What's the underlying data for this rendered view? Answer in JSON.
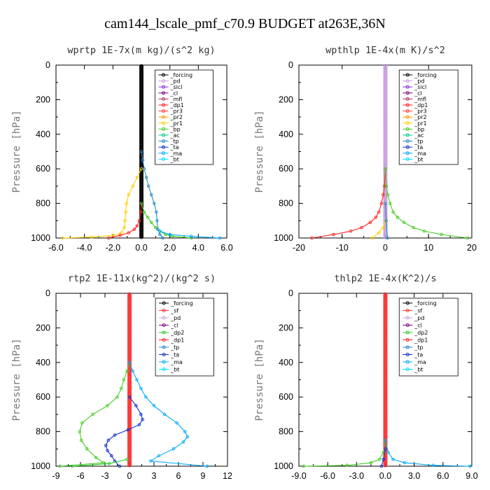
{
  "title": "cam144_lscale_pmf_c70.9  BUDGET at263E,36N",
  "colors": {
    "forcing": "#000000",
    "pd": "#c9a0dc",
    "sicl": "#8a2be2",
    "cl": "#800080",
    "mfl": "#b03060",
    "dp1": "#ff2020",
    "pr3": "#ff4040",
    "pr2": "#ff9900",
    "pr1": "#ffd000",
    "bp": "#44cc22",
    "ac": "#00cc88",
    "tp": "#2288cc",
    "ta": "#1030d0",
    "ma": "#00aaff",
    "bt": "#00e0ff",
    "sf": "#ff3030",
    "dp2": "#22cc22"
  },
  "chart_data": [
    {
      "id": "wprtp",
      "type": "line",
      "title": "wprtp  1E-7x(m kg)/(s^2 kg)",
      "ylabel": "Pressure [hPa]",
      "xlim": [
        -6,
        6
      ],
      "ylim": [
        1000,
        0
      ],
      "xticks": [
        -6,
        -4,
        -2,
        0,
        2,
        4,
        6
      ],
      "xtick_labels": [
        "-6.0",
        "-4.0",
        "-2.0",
        "0.0",
        "2.0",
        "4.0",
        "6.0"
      ],
      "yticks": [
        0,
        200,
        400,
        600,
        800,
        1000
      ],
      "ytick_labels": [
        "0",
        "200",
        "400",
        "600",
        "800",
        "1000"
      ],
      "legend": [
        "_forcing",
        "_pd",
        "_sicl",
        "_cl",
        "_mfl",
        "_dp1",
        "_pr3",
        "_pr2",
        "_pr1",
        "_bp",
        "_ac",
        "_tp",
        "_ta",
        "_ma",
        "_bt"
      ],
      "series": [
        {
          "name": "_forcing",
          "color": "#000000",
          "p": [
            0,
            1000
          ],
          "x": [
            0,
            0
          ]
        },
        {
          "name": "_pr1",
          "color": "#ffd000",
          "p": [
            600,
            650,
            700,
            750,
            800,
            850,
            900,
            940,
            970,
            985,
            995,
            1000
          ],
          "x": [
            0,
            -0.3,
            -0.6,
            -0.9,
            -1.05,
            -1.1,
            -1.15,
            -1.2,
            -1.4,
            -2.0,
            -3.5,
            -5.5
          ]
        },
        {
          "name": "_dp1",
          "color": "#ff2020",
          "p": [
            800,
            850,
            900,
            930,
            950,
            970,
            985,
            1000
          ],
          "x": [
            0,
            -0.05,
            -0.15,
            -0.3,
            -0.5,
            -0.9,
            -1.5,
            -2.3
          ]
        },
        {
          "name": "_bp",
          "color": "#44cc22",
          "p": [
            800,
            850,
            880,
            910,
            940,
            960,
            980,
            990,
            1000
          ],
          "x": [
            0,
            0.2,
            0.45,
            0.7,
            1.0,
            1.3,
            1.7,
            2.2,
            3.5
          ]
        },
        {
          "name": "_tp",
          "color": "#2288cc",
          "p": [
            500,
            550,
            600,
            650,
            700,
            750,
            800,
            850,
            900,
            950,
            980,
            1000
          ],
          "x": [
            0,
            0.1,
            0.2,
            0.35,
            0.5,
            0.7,
            0.9,
            1.05,
            1.1,
            1.15,
            1.3,
            1.5
          ]
        },
        {
          "name": "_ma",
          "color": "#00aaff",
          "p": [
            960,
            980,
            990,
            1000
          ],
          "x": [
            1.3,
            2.0,
            3.5,
            5.5
          ]
        }
      ]
    },
    {
      "id": "wpthlp",
      "type": "line",
      "title": "wpthlp  1E-4x(m K)/s^2",
      "ylabel": "Pressure [hPa]",
      "xlim": [
        -20,
        20
      ],
      "ylim": [
        1000,
        0
      ],
      "xticks": [
        -20,
        -10,
        0,
        10,
        20
      ],
      "xtick_labels": [
        "-20",
        "-10",
        "0",
        "10",
        "20"
      ],
      "yticks": [
        0,
        200,
        400,
        600,
        800,
        1000
      ],
      "ytick_labels": [
        "0",
        "200",
        "400",
        "600",
        "800",
        "1000"
      ],
      "legend": [
        "_forcing",
        "_pd",
        "_sicl",
        "_cl",
        "_mfl",
        "_dp1",
        "_pr3",
        "_pr2",
        "_pr1",
        "_bp",
        "_ac",
        "_tp",
        "_ta",
        "_ma",
        "_bt"
      ],
      "series": [
        {
          "name": "_pd",
          "color": "#c9a0dc",
          "p": [
            0,
            1000
          ],
          "x": [
            0,
            0
          ]
        },
        {
          "name": "_dp1",
          "color": "#ff2020",
          "p": [
            600,
            700,
            750,
            800,
            850,
            880,
            910,
            940,
            960,
            980,
            1000
          ],
          "x": [
            0,
            -0.2,
            -0.5,
            -0.9,
            -1.5,
            -2.2,
            -3.5,
            -5.5,
            -8,
            -12,
            -17
          ]
        },
        {
          "name": "_bp",
          "color": "#44cc22",
          "p": [
            600,
            700,
            750,
            800,
            850,
            880,
            910,
            940,
            960,
            980,
            1000
          ],
          "x": [
            0,
            0.25,
            0.6,
            1.1,
            1.8,
            2.8,
            4.3,
            6.5,
            9,
            13,
            19
          ]
        },
        {
          "name": "_pr1",
          "color": "#ffd000",
          "p": [
            900,
            940,
            970,
            1000
          ],
          "x": [
            0,
            -0.5,
            -1.5,
            -3
          ]
        },
        {
          "name": "_tp",
          "color": "#2288cc",
          "p": [
            800,
            900,
            1000
          ],
          "x": [
            0,
            0.2,
            0.5
          ]
        }
      ]
    },
    {
      "id": "rtp2",
      "type": "line",
      "title": "rtp2  1E-11x(kg^2)/(kg^2 s)",
      "ylabel": "Pressure [hPa]",
      "xlim": [
        -9,
        12
      ],
      "ylim": [
        1000,
        0
      ],
      "xticks": [
        -9,
        -6,
        -3,
        0,
        3,
        6,
        9,
        12
      ],
      "xtick_labels": [
        "-9",
        "-6",
        "-3",
        "0",
        "3",
        "6",
        "9",
        "12"
      ],
      "yticks": [
        0,
        200,
        400,
        600,
        800,
        1000
      ],
      "ytick_labels": [
        "0",
        "200",
        "400",
        "600",
        "800",
        "1000"
      ],
      "legend": [
        "_forcing",
        "_sf",
        "_pd",
        "_cl",
        "_dp2",
        "_dp1",
        "_tp",
        "_ta",
        "_ma",
        "_bt"
      ],
      "series": [
        {
          "name": "_forcing",
          "color": "#ff3030",
          "p": [
            0,
            1000
          ],
          "x": [
            0,
            0
          ]
        },
        {
          "name": "_dp1",
          "color": "#44cc22",
          "p": [
            400,
            450,
            500,
            550,
            600,
            650,
            700,
            750,
            800,
            850,
            900,
            950,
            980,
            1000
          ],
          "x": [
            0,
            -0.3,
            -0.7,
            -1.0,
            -1.5,
            -2.7,
            -4.5,
            -5.8,
            -6.1,
            -5.9,
            -5.2,
            -4.1,
            -3.2,
            -8.5
          ]
        },
        {
          "name": "_ta",
          "color": "#1030d0",
          "p": [
            600,
            650,
            700,
            730,
            760,
            790,
            820,
            850,
            880,
            910,
            940,
            970,
            1000
          ],
          "x": [
            0,
            0.8,
            1.4,
            1.6,
            1.2,
            -0.2,
            -1.8,
            -2.6,
            -2.9,
            -2.7,
            -2.2,
            -1.8,
            -1.2
          ]
        },
        {
          "name": "_ma",
          "color": "#00aaff",
          "p": [
            400,
            450,
            500,
            550,
            600,
            650,
            700,
            750,
            800,
            830,
            860,
            900,
            940,
            970,
            1000
          ],
          "x": [
            0,
            0.4,
            0.9,
            1.4,
            2.0,
            3.0,
            4.3,
            5.8,
            6.8,
            7.1,
            6.6,
            5.4,
            3.6,
            2.6,
            9.5
          ]
        },
        {
          "name": "_dp2",
          "color": "#22cc22",
          "p": [
            960,
            985,
            1000
          ],
          "x": [
            -0.3,
            -2.5,
            -7
          ]
        }
      ]
    },
    {
      "id": "thlp2",
      "type": "line",
      "title": "thlp2  1E-4x(K^2)/s",
      "ylabel": "Pressure [hPa]",
      "xlim": [
        -9,
        9
      ],
      "ylim": [
        1000,
        0
      ],
      "xticks": [
        -9,
        -6,
        -3,
        0,
        3,
        6,
        9
      ],
      "xtick_labels": [
        "-9.0",
        "-6.0",
        "-3.0",
        "0.0",
        "3.0",
        "6.0",
        "9.0"
      ],
      "yticks": [
        0,
        200,
        400,
        600,
        800,
        1000
      ],
      "ytick_labels": [
        "0",
        "200",
        "400",
        "600",
        "800",
        "1000"
      ],
      "legend": [
        "_forcing",
        "_sf",
        "_pd",
        "_cl",
        "_dp2",
        "_dp1",
        "_tp",
        "_ta",
        "_ma",
        "_bt"
      ],
      "series": [
        {
          "name": "_forcing",
          "color": "#ff3030",
          "p": [
            0,
            1000
          ],
          "x": [
            0,
            0
          ]
        },
        {
          "name": "_dp1",
          "color": "#44cc22",
          "p": [
            850,
            920,
            960,
            980,
            995,
            1000
          ],
          "x": [
            0,
            -0.2,
            -0.6,
            -1.5,
            -4,
            -8.5
          ]
        },
        {
          "name": "_ma",
          "color": "#00aaff",
          "p": [
            850,
            920,
            960,
            980,
            995,
            1000
          ],
          "x": [
            0,
            0.3,
            0.8,
            2.0,
            5,
            8.8
          ]
        },
        {
          "name": "_ta",
          "color": "#1030d0",
          "p": [
            900,
            960,
            1000
          ],
          "x": [
            0,
            -0.2,
            -0.4
          ]
        }
      ]
    }
  ]
}
